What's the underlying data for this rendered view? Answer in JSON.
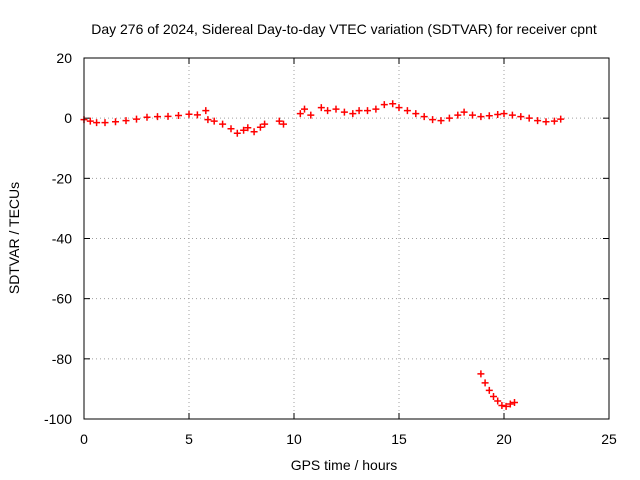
{
  "chart_data": {
    "type": "scatter",
    "title": "Day 276 of 2024, Sidereal Day-to-day VTEC variation (SDTVAR) for receiver cpnt",
    "xlabel": "GPS time / hours",
    "ylabel": "SDTVAR / TECUs",
    "xlim": [
      0,
      25
    ],
    "ylim": [
      -100,
      20
    ],
    "xticks": [
      0,
      5,
      10,
      15,
      20,
      25
    ],
    "yticks": [
      20,
      0,
      -20,
      -40,
      -60,
      -80,
      -100
    ],
    "grid": true,
    "marker": "plus",
    "color": "#ff0000",
    "series": [
      {
        "name": "main",
        "points": [
          [
            0.0,
            -0.5
          ],
          [
            0.3,
            -1.0
          ],
          [
            0.6,
            -1.5
          ],
          [
            1.0,
            -1.5
          ],
          [
            1.5,
            -1.2
          ],
          [
            2.0,
            -0.8
          ],
          [
            2.5,
            -0.3
          ],
          [
            3.0,
            0.3
          ],
          [
            3.5,
            0.5
          ],
          [
            4.0,
            0.6
          ],
          [
            4.5,
            0.9
          ],
          [
            5.0,
            1.3
          ],
          [
            5.4,
            1.1
          ],
          [
            5.8,
            2.5
          ],
          [
            5.9,
            -0.5
          ],
          [
            6.2,
            -1.0
          ],
          [
            6.6,
            -2.0
          ],
          [
            7.0,
            -3.5
          ],
          [
            7.3,
            -5.0
          ],
          [
            7.6,
            -4.0
          ],
          [
            7.8,
            -3.2
          ],
          [
            8.1,
            -4.5
          ],
          [
            8.4,
            -3.0
          ],
          [
            8.6,
            -2.0
          ],
          [
            9.3,
            -1.0
          ],
          [
            9.5,
            -2.0
          ],
          [
            10.3,
            1.5
          ],
          [
            10.5,
            3.0
          ],
          [
            10.8,
            1.0
          ],
          [
            11.3,
            3.5
          ],
          [
            11.6,
            2.5
          ],
          [
            12.0,
            3.0
          ],
          [
            12.4,
            2.0
          ],
          [
            12.8,
            1.5
          ],
          [
            13.1,
            2.5
          ],
          [
            13.5,
            2.5
          ],
          [
            13.9,
            3.0
          ],
          [
            14.3,
            4.5
          ],
          [
            14.7,
            4.8
          ],
          [
            15.0,
            3.5
          ],
          [
            15.4,
            2.5
          ],
          [
            15.8,
            1.5
          ],
          [
            16.2,
            0.5
          ],
          [
            16.6,
            -0.5
          ],
          [
            17.0,
            -0.8
          ],
          [
            17.4,
            0.0
          ],
          [
            17.8,
            1.0
          ],
          [
            18.1,
            2.0
          ],
          [
            18.5,
            1.0
          ],
          [
            18.9,
            0.5
          ],
          [
            19.3,
            0.8
          ],
          [
            19.7,
            1.2
          ],
          [
            20.0,
            1.5
          ],
          [
            20.4,
            1.0
          ],
          [
            20.8,
            0.5
          ],
          [
            21.2,
            0.0
          ],
          [
            21.6,
            -0.8
          ],
          [
            22.0,
            -1.2
          ],
          [
            22.4,
            -1.0
          ],
          [
            22.7,
            -0.3
          ]
        ]
      },
      {
        "name": "tail",
        "points": [
          [
            18.9,
            -85
          ],
          [
            19.1,
            -88
          ],
          [
            19.3,
            -90.5
          ],
          [
            19.5,
            -92.5
          ],
          [
            19.7,
            -94
          ],
          [
            19.9,
            -95.5
          ],
          [
            20.1,
            -95.8
          ],
          [
            20.3,
            -95
          ],
          [
            20.5,
            -94.5
          ]
        ]
      }
    ]
  }
}
